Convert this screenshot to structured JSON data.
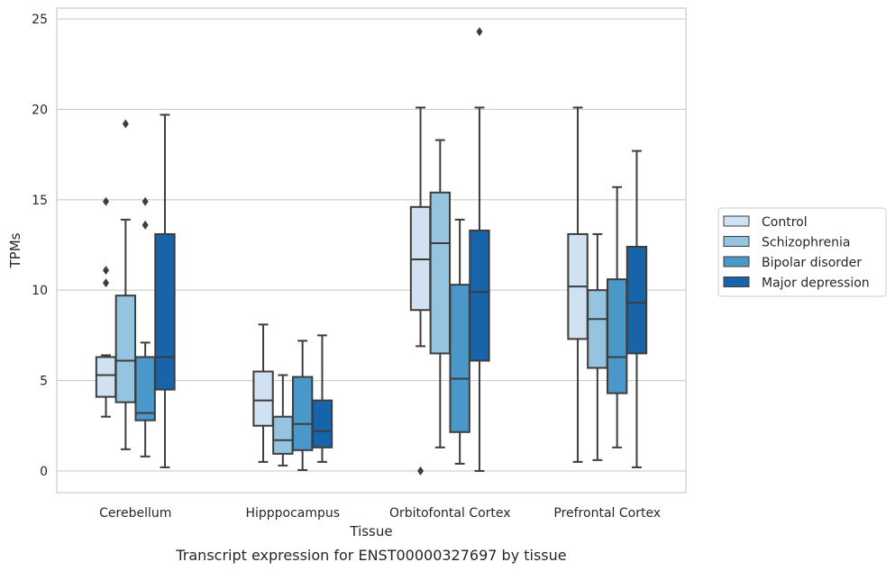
{
  "chart_data": {
    "type": "box",
    "title": "",
    "caption": "Transcript expression for ENST00000327697 by tissue",
    "xlabel": "Tissue",
    "ylabel": "TPMs",
    "ylim": [
      -1.2,
      25.6
    ],
    "yticks": [
      0,
      5,
      10,
      15,
      20,
      25
    ],
    "grid": "horizontal",
    "legend_position": "right",
    "categories": [
      "Cerebellum",
      "Hipppocampus",
      "Orbitofontal Cortex",
      "Prefrontal Cortex"
    ],
    "series": [
      {
        "name": "Control",
        "color": "#d0e1f2",
        "boxes": [
          {
            "whisker_low": 3.0,
            "q1": 4.1,
            "median": 5.3,
            "q3": 6.3,
            "whisker_high": 6.4,
            "outliers": [
              10.4,
              11.1,
              14.9
            ]
          },
          {
            "whisker_low": 0.5,
            "q1": 2.5,
            "median": 3.9,
            "q3": 5.5,
            "whisker_high": 8.1,
            "outliers": []
          },
          {
            "whisker_low": 6.9,
            "q1": 8.9,
            "median": 11.7,
            "q3": 14.6,
            "whisker_high": 20.1,
            "outliers": [
              0.0
            ]
          },
          {
            "whisker_low": 0.5,
            "q1": 7.3,
            "median": 10.2,
            "q3": 13.1,
            "whisker_high": 20.1,
            "outliers": []
          }
        ]
      },
      {
        "name": "Schizophrenia",
        "color": "#94c4df",
        "boxes": [
          {
            "whisker_low": 1.2,
            "q1": 3.8,
            "median": 6.1,
            "q3": 9.7,
            "whisker_high": 13.9,
            "outliers": [
              19.2
            ]
          },
          {
            "whisker_low": 0.3,
            "q1": 0.95,
            "median": 1.7,
            "q3": 3.0,
            "whisker_high": 5.3,
            "outliers": []
          },
          {
            "whisker_low": 1.3,
            "q1": 6.5,
            "median": 12.6,
            "q3": 15.4,
            "whisker_high": 18.3,
            "outliers": []
          },
          {
            "whisker_low": 0.6,
            "q1": 5.7,
            "median": 8.4,
            "q3": 10.0,
            "whisker_high": 13.1,
            "outliers": []
          }
        ]
      },
      {
        "name": "Bipolar disorder",
        "color": "#4a98c9",
        "boxes": [
          {
            "whisker_low": 0.8,
            "q1": 2.8,
            "median": 3.2,
            "q3": 6.3,
            "whisker_high": 7.1,
            "outliers": [
              13.6,
              14.9
            ]
          },
          {
            "whisker_low": 0.05,
            "q1": 1.15,
            "median": 2.6,
            "q3": 5.2,
            "whisker_high": 7.2,
            "outliers": []
          },
          {
            "whisker_low": 0.4,
            "q1": 2.15,
            "median": 5.1,
            "q3": 10.3,
            "whisker_high": 13.9,
            "outliers": []
          },
          {
            "whisker_low": 1.3,
            "q1": 4.3,
            "median": 6.3,
            "q3": 10.6,
            "whisker_high": 15.7,
            "outliers": []
          }
        ]
      },
      {
        "name": "Major depression",
        "color": "#1764ab",
        "boxes": [
          {
            "whisker_low": 0.2,
            "q1": 4.5,
            "median": 6.3,
            "q3": 13.1,
            "whisker_high": 19.7,
            "outliers": []
          },
          {
            "whisker_low": 0.5,
            "q1": 1.3,
            "median": 2.2,
            "q3": 3.9,
            "whisker_high": 7.5,
            "outliers": []
          },
          {
            "whisker_low": 0.0,
            "q1": 6.1,
            "median": 9.9,
            "q3": 13.3,
            "whisker_high": 20.1,
            "outliers": [
              24.3
            ]
          },
          {
            "whisker_low": 0.2,
            "q1": 6.5,
            "median": 9.3,
            "q3": 12.4,
            "whisker_high": 17.7,
            "outliers": []
          }
        ]
      }
    ]
  }
}
